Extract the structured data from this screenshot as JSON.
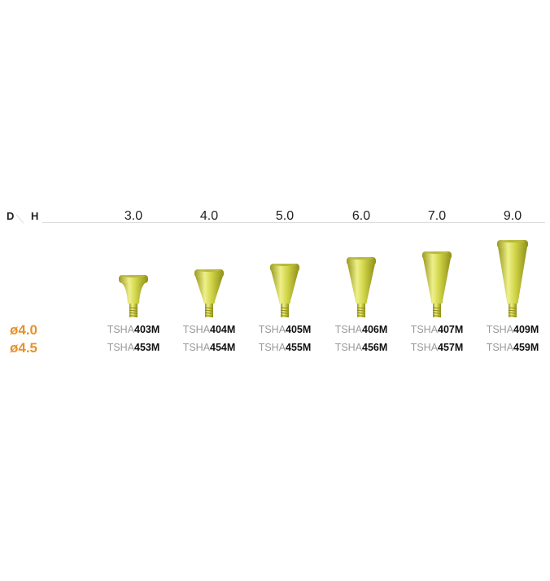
{
  "header": {
    "d_label": "D",
    "h_label": "H"
  },
  "heights": [
    "3.0",
    "4.0",
    "5.0",
    "6.0",
    "7.0",
    "9.0"
  ],
  "rows": [
    {
      "diameter": "ø4.0",
      "codes": [
        "403M",
        "404M",
        "405M",
        "406M",
        "407M",
        "409M"
      ]
    },
    {
      "diameter": "ø4.5",
      "codes": [
        "453M",
        "454M",
        "455M",
        "456M",
        "457M",
        "459M"
      ]
    }
  ],
  "code_prefix": "TSHA",
  "colors": {
    "accent": "#e8912a",
    "abutment": "#c9cc3a"
  }
}
